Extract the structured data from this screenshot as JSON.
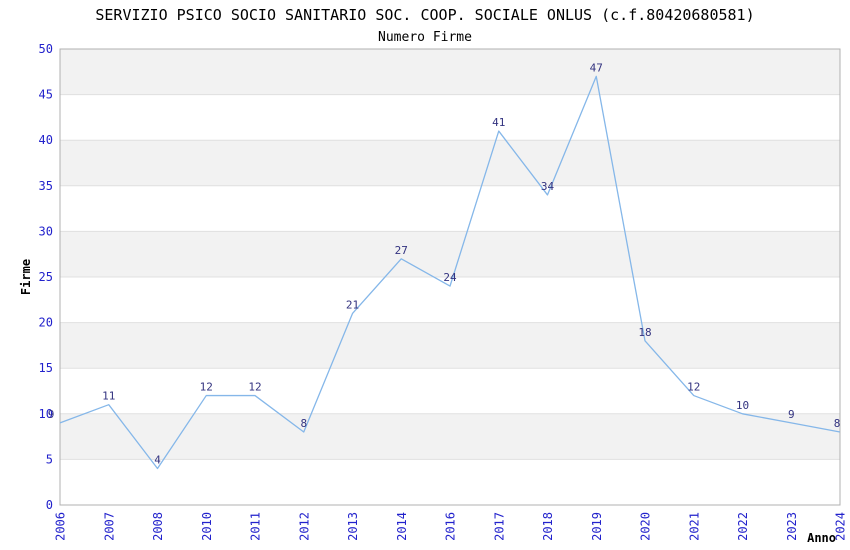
{
  "chart_data": {
    "type": "line",
    "title": "SERVIZIO PSICO SOCIO SANITARIO SOC. COOP. SOCIALE ONLUS (c.f.80420680581)",
    "subtitle": "Numero Firme",
    "xlabel": "Anno",
    "ylabel": "Firme",
    "categories": [
      "2006",
      "2007",
      "2008",
      "2010",
      "2011",
      "2012",
      "2013",
      "2014",
      "2016",
      "2017",
      "2018",
      "2019",
      "2020",
      "2021",
      "2022",
      "2023",
      "2024"
    ],
    "values": [
      9,
      11,
      4,
      12,
      12,
      8,
      21,
      27,
      24,
      41,
      34,
      47,
      18,
      12,
      10,
      9,
      8
    ],
    "ylim": [
      0,
      50
    ],
    "ytick_step": 5,
    "grid": true,
    "alternating_bands": true,
    "legend_position": "none",
    "colors": {
      "line": "#85b7e9",
      "tick_label": "#2222cc",
      "data_label": "#333380",
      "band": "#f2f2f2",
      "gridline": "#e0e0e0",
      "border": "#b0b0b0",
      "title": "#303030",
      "subtitle": "#606060",
      "axis_title": "#1a1a1a",
      "background": "#ffffff"
    }
  }
}
